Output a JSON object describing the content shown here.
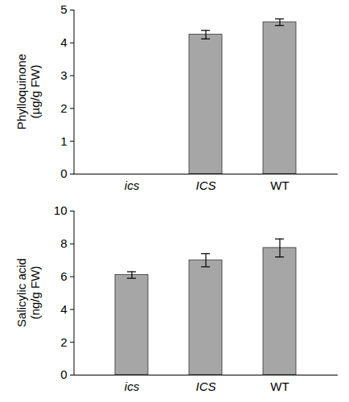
{
  "chart_data": [
    {
      "type": "bar",
      "y_label": "Phylloquinone (µg/g FW)",
      "categories": [
        "ics",
        "ICS",
        "WT"
      ],
      "values": [
        0,
        4.25,
        4.63
      ],
      "errors": [
        0,
        0.13,
        0.1
      ],
      "color": "#a6a6a6",
      "ylim": [
        0,
        5
      ],
      "yticks": [
        0,
        1,
        2,
        3,
        4,
        5
      ],
      "grid": false
    },
    {
      "type": "bar",
      "y_label": "Salicylic acid (ng/g FW)",
      "categories": [
        "ics",
        "ICS",
        "WT"
      ],
      "values": [
        6.1,
        7.0,
        7.75
      ],
      "errors": [
        0.2,
        0.4,
        0.55
      ],
      "color": "#a6a6a6",
      "ylim": [
        0,
        10
      ],
      "yticks": [
        0,
        2,
        4,
        6,
        8,
        10
      ],
      "grid": false
    }
  ]
}
